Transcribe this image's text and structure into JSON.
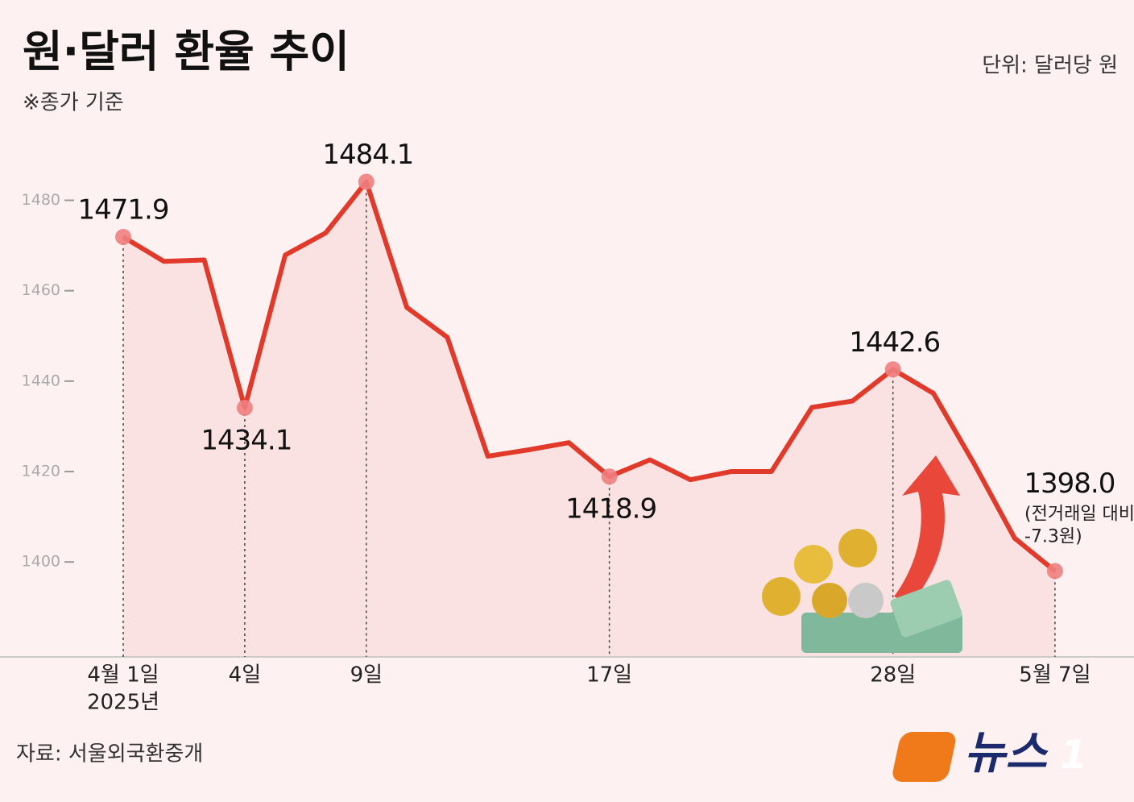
{
  "chart_data": {
    "type": "line",
    "title": "원·달러 환율 추이",
    "subtitle": "※종가 기준",
    "unit": "단위: 달러당 원",
    "source": "자료: 서울외국환중개",
    "logo": "뉴스",
    "logo_mark": "1",
    "year_label": "2025년",
    "annotation": "(전거래일 대비",
    "annotation_change": "-7.3원)",
    "categories": [
      "4월 1일",
      null,
      null,
      "4일",
      null,
      null,
      "9일",
      null,
      null,
      null,
      null,
      null,
      "17일",
      null,
      null,
      null,
      null,
      null,
      null,
      "28일",
      null,
      null,
      null,
      "5월 7일"
    ],
    "values": [
      1471.9,
      1466.5,
      1466.8,
      1434.1,
      1467.9,
      1472.8,
      1484.1,
      1456.3,
      1449.7,
      1423.4,
      1424.8,
      1426.4,
      1418.9,
      1422.6,
      1418.2,
      1420.0,
      1420.0,
      1434.2,
      1435.6,
      1442.6,
      1437.3,
      1421.8,
      1405.3,
      1398.0
    ],
    "value_labels": [
      "1471.9",
      null,
      null,
      "1434.1",
      null,
      null,
      "1484.1",
      null,
      null,
      null,
      null,
      null,
      "1418.9",
      null,
      null,
      null,
      null,
      null,
      null,
      "1442.6",
      null,
      null,
      null,
      "1398.0"
    ],
    "color": "#e23a2a",
    "ylim": [
      1379,
      1494
    ],
    "yticks": [
      1400,
      1420,
      1440,
      1460,
      1480
    ]
  }
}
